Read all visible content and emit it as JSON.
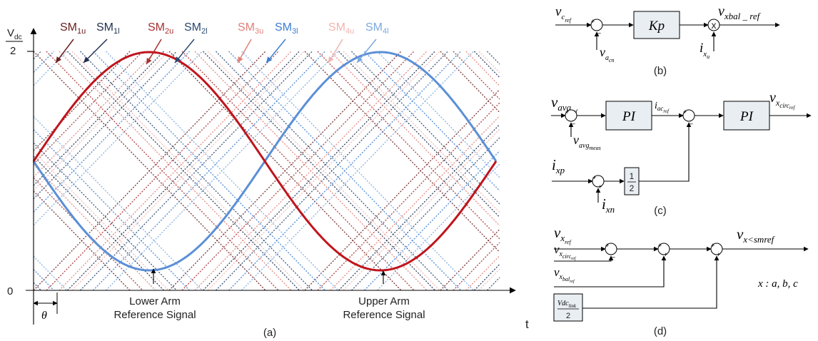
{
  "panel_a": {
    "y_axis_top": "V",
    "y_axis_top_sub": "dc",
    "y_axis_two": "2",
    "y_axis_zero": "0",
    "x_axis_label": "t",
    "theta_label": "θ",
    "caption": "(a)",
    "lower_ref_line1": "Lower Arm",
    "lower_ref_line2": "Reference Signal",
    "upper_ref_line1": "Upper Arm",
    "upper_ref_line2": "Reference Signal",
    "legend": [
      {
        "main": "SM",
        "sub": "1u",
        "color": "#6b2020"
      },
      {
        "main": "SM",
        "sub": "1l",
        "color": "#1f3050"
      },
      {
        "main": "SM",
        "sub": "2u",
        "color": "#a83030"
      },
      {
        "main": "SM",
        "sub": "2l",
        "color": "#2a4870"
      },
      {
        "main": "SM",
        "sub": "3u",
        "color": "#e0807a"
      },
      {
        "main": "SM",
        "sub": "3l",
        "color": "#3c7fd0"
      },
      {
        "main": "SM",
        "sub": "4u",
        "color": "#efb4ae"
      },
      {
        "main": "SM",
        "sub": "4l",
        "color": "#7aa9e0"
      }
    ],
    "signal_colors": {
      "upper": "#c0141c",
      "lower": "#5b8fd6"
    }
  },
  "panel_b": {
    "caption": "(b)",
    "input_main": "v",
    "input_sub": "c",
    "input_subsub": "ref",
    "feedback_main": "v",
    "feedback_sub": "a",
    "feedback_subsub": "cn",
    "gain": "Kp",
    "multiplier": "x",
    "current_main": "i",
    "current_sub": "x",
    "current_subsub": "u",
    "output_main": "v",
    "output_sub": "xbal _ ref",
    "sum_plus": "+",
    "sum_minus": "_"
  },
  "panel_c": {
    "caption": "(c)",
    "input_main": "v",
    "input_sub": "avg",
    "input_subsub": "ref",
    "feedback_main": "v",
    "feedback_sub": "avg",
    "feedback_subsub": "meas",
    "pi1": "PI",
    "pi2": "PI",
    "mid_main": "i",
    "mid_sub": "ac",
    "mid_subsub": "ref",
    "output_main": "v",
    "output_sub": "x",
    "output_subsub": "circ",
    "output_subsubsub": "ref",
    "ixp_main": "i",
    "ixp_sub": "xp",
    "ixn_main": "i",
    "ixn_sub": "xn",
    "half_num": "1",
    "half_den": "2",
    "sum_plus": "+",
    "sum_minus": "_"
  },
  "panel_d": {
    "caption": "(d)",
    "vx_main": "v",
    "vx_sub": "x",
    "vx_subsub": "ref",
    "vcirc_main": "v",
    "vcirc_sub": "x",
    "vcirc_subsub": "circ",
    "vcirc_subsubsub": "ref",
    "vbal_main": "v",
    "vbal_sub": "x",
    "vbal_subsub": "bal",
    "vbal_subsubsub": "ref",
    "vdc_num_main": "Vdc",
    "vdc_num_sub": "link",
    "vdc_den": "2",
    "output_main": "v",
    "output_sub": "x<smref",
    "note": "x : a, b, c",
    "sum_plus": "+",
    "sum_minus": "_"
  }
}
